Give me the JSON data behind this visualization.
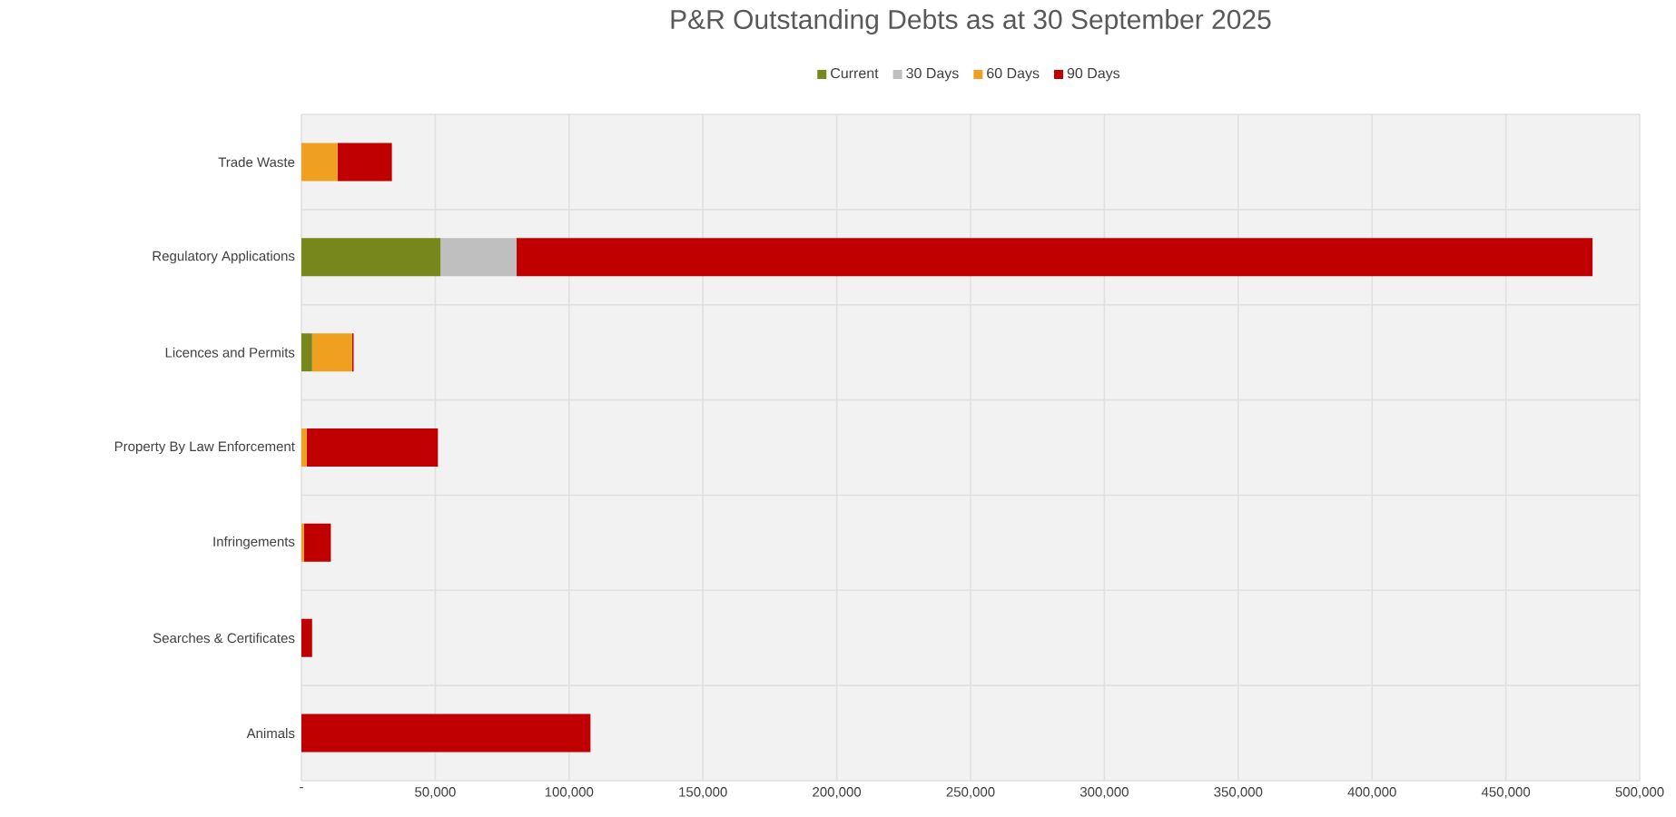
{
  "chart_data": {
    "type": "bar",
    "orientation": "horizontal",
    "stacked": true,
    "title": "P&R Outstanding Debts as at 30 September 2025",
    "categories": [
      "Trade Waste",
      "Regulatory Applications",
      "Licences and Permits",
      "Property By Law Enforcement",
      "Infringements",
      "Searches & Certificates",
      "Animals"
    ],
    "series": [
      {
        "name": "Current",
        "color": "#77871b",
        "values": [
          null,
          52000,
          4000,
          null,
          null,
          null,
          null
        ]
      },
      {
        "name": "30 Days",
        "color": "#bfbfbf",
        "values": [
          null,
          28400,
          null,
          null,
          null,
          null,
          null
        ]
      },
      {
        "name": "60 Days",
        "color": "#f0a020",
        "values": [
          13500,
          null,
          15000,
          2000,
          1000,
          null,
          null
        ]
      },
      {
        "name": "90 Days",
        "color": "#c00000",
        "values": [
          20300,
          402000,
          500,
          49000,
          10000,
          4000,
          108000
        ]
      }
    ],
    "xlim": [
      0,
      500000
    ],
    "xticks": [
      {
        "value": 0,
        "label": "-"
      },
      {
        "value": 50000,
        "label": "50,000"
      },
      {
        "value": 100000,
        "label": "100,000"
      },
      {
        "value": 150000,
        "label": "150,000"
      },
      {
        "value": 200000,
        "label": "200,000"
      },
      {
        "value": 250000,
        "label": "250,000"
      },
      {
        "value": 300000,
        "label": "300,000"
      },
      {
        "value": 350000,
        "label": "350,000"
      },
      {
        "value": 400000,
        "label": "400,000"
      },
      {
        "value": 450000,
        "label": "450,000"
      },
      {
        "value": 500000,
        "label": "500,000"
      }
    ],
    "grid": true,
    "legend": "top"
  }
}
